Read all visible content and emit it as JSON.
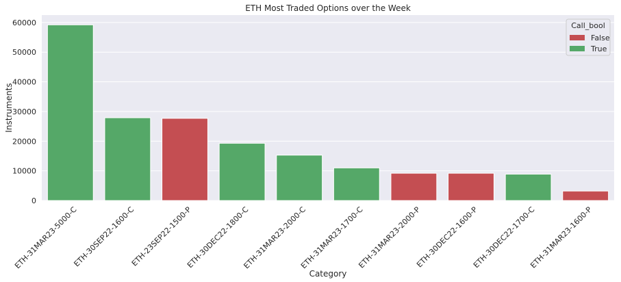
{
  "chart_data": {
    "type": "bar",
    "title": "ETH Most Traded Options over the Week",
    "xlabel": "Category",
    "ylabel": "Instruments",
    "ylim": [
      0,
      62500
    ],
    "yticks": [
      0,
      10000,
      20000,
      30000,
      40000,
      50000,
      60000
    ],
    "grid": true,
    "legend_position": "top-right",
    "legend_title": "Call_bool",
    "categories": [
      "ETH-31MAR23-5000-C",
      "ETH-30SEP22-1600-C",
      "ETH-23SEP22-1500-P",
      "ETH-30DEC22-1800-C",
      "ETH-31MAR23-2000-C",
      "ETH-31MAR23-1700-C",
      "ETH-31MAR23-2000-P",
      "ETH-30DEC22-1600-P",
      "ETH-30DEC22-1700-C",
      "ETH-31MAR23-1600-P"
    ],
    "values": [
      59200,
      27900,
      27700,
      19300,
      15300,
      11000,
      9200,
      9200,
      8900,
      3200
    ],
    "call_bool": [
      "True",
      "True",
      "False",
      "True",
      "True",
      "True",
      "False",
      "False",
      "True",
      "False"
    ],
    "series": [
      {
        "name": "False",
        "color": "#c44e52"
      },
      {
        "name": "True",
        "color": "#55a868"
      }
    ]
  },
  "colors": {
    "plot_background": "#eaeaf2",
    "grid": "#ffffff",
    "text": "#262626"
  }
}
